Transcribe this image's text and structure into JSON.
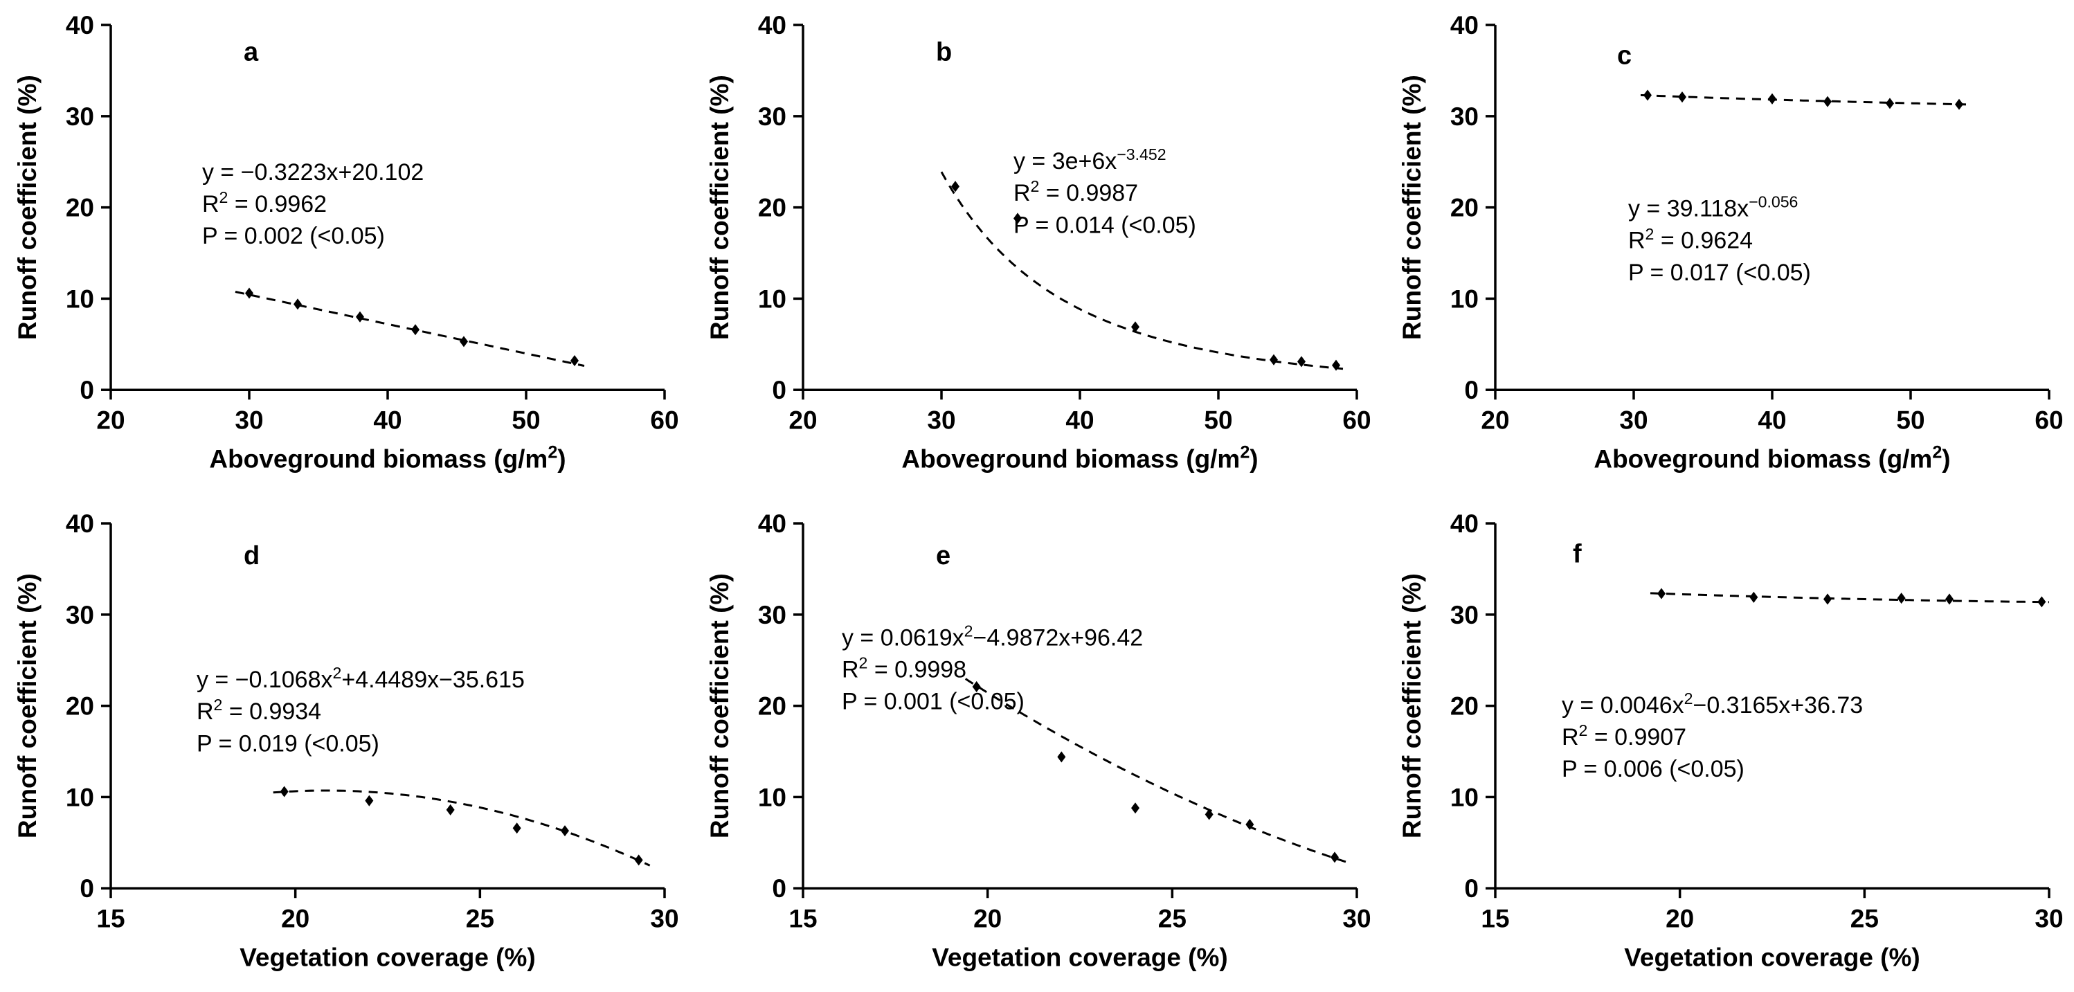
{
  "colors": {
    "axis": "#000000",
    "text": "#000000",
    "marker": "#000000",
    "trend": "#000000",
    "background": "#ffffff"
  },
  "chart_data": [
    {
      "panel": "a",
      "type": "scatter",
      "xlabel": "Aboveground biomass (g/m{2})",
      "ylabel": "Runoff coefficient (%)",
      "xlim": [
        20,
        60
      ],
      "xticks": [
        20,
        30,
        40,
        50,
        60
      ],
      "ylim": [
        0,
        40
      ],
      "yticks": [
        0,
        10,
        20,
        30,
        40
      ],
      "letter": {
        "text": "a",
        "fx": 0.24,
        "fy": 0.025
      },
      "annotation": {
        "fx": 0.165,
        "fy": 0.36,
        "lines": [
          "y = −0.3223x+20.102",
          "R{2} = 0.9962",
          "P = 0.002 (<0.05)"
        ]
      },
      "points": [
        [
          30,
          10.6
        ],
        [
          33.5,
          9.4
        ],
        [
          38,
          8.0
        ],
        [
          42,
          6.6
        ],
        [
          45.5,
          5.3
        ],
        [
          53.5,
          3.2
        ]
      ],
      "trend": {
        "kind": "linear",
        "coeffs": [
          -0.3223,
          20.102
        ],
        "xrange": [
          29,
          54.2
        ]
      }
    },
    {
      "panel": "b",
      "type": "scatter",
      "xlabel": "Aboveground biomass (g/m{2})",
      "ylabel": "Runoff coefficient (%)",
      "xlim": [
        20,
        60
      ],
      "xticks": [
        20,
        30,
        40,
        50,
        60
      ],
      "ylim": [
        0,
        40
      ],
      "yticks": [
        0,
        10,
        20,
        30,
        40
      ],
      "letter": {
        "text": "b",
        "fx": 0.24,
        "fy": 0.025
      },
      "annotation": {
        "fx": 0.38,
        "fy": 0.33,
        "lines": [
          "y = 3e+6x{−3.452}",
          "R{2} = 0.9987",
          "P = 0.014 (<0.05)"
        ]
      },
      "points": [
        [
          31,
          22.3
        ],
        [
          35.5,
          18.8
        ],
        [
          44,
          6.9
        ],
        [
          54,
          3.3
        ],
        [
          56,
          3.1
        ],
        [
          58.5,
          2.7
        ]
      ],
      "trend": {
        "kind": "power",
        "coeffs": [
          3000000,
          -3.452
        ],
        "xrange": [
          30,
          59
        ]
      }
    },
    {
      "panel": "c",
      "type": "scatter",
      "xlabel": "Aboveground biomass (g/m{2})",
      "ylabel": "Runoff coefficient (%)",
      "xlim": [
        20,
        60
      ],
      "xticks": [
        20,
        30,
        40,
        50,
        60
      ],
      "ylim": [
        0,
        40
      ],
      "yticks": [
        0,
        10,
        20,
        30,
        40
      ],
      "letter": {
        "text": "c",
        "fx": 0.22,
        "fy": 0.035
      },
      "annotation": {
        "fx": 0.24,
        "fy": 0.46,
        "lines": [
          "y = 39.118x{−0.056}",
          "R{2} = 0.9624",
          "P = 0.017 (<0.05)"
        ]
      },
      "points": [
        [
          31,
          32.3
        ],
        [
          33.5,
          32.1
        ],
        [
          40,
          31.9
        ],
        [
          44,
          31.6
        ],
        [
          48.5,
          31.4
        ],
        [
          53.5,
          31.3
        ]
      ],
      "trend": {
        "kind": "power",
        "coeffs": [
          39.118,
          -0.056
        ],
        "xrange": [
          30.5,
          54
        ]
      }
    },
    {
      "panel": "d",
      "type": "scatter",
      "xlabel": "Vegetation coverage (%)",
      "ylabel": "Runoff coefficient (%)",
      "xlim": [
        15,
        30
      ],
      "xticks": [
        15,
        20,
        25,
        30
      ],
      "ylim": [
        0,
        40
      ],
      "yticks": [
        0,
        10,
        20,
        30,
        40
      ],
      "letter": {
        "text": "d",
        "fx": 0.24,
        "fy": 0.04
      },
      "annotation": {
        "fx": 0.155,
        "fy": 0.385,
        "lines": [
          "y = −0.1068x{2}+4.4489x−35.615",
          "R{2} = 0.9934",
          "P = 0.019 (<0.05)"
        ]
      },
      "points": [
        [
          19.7,
          10.6
        ],
        [
          22,
          9.6
        ],
        [
          24.2,
          8.6
        ],
        [
          26,
          6.6
        ],
        [
          27.3,
          6.3
        ],
        [
          29.3,
          3.1
        ]
      ],
      "trend": {
        "kind": "quad",
        "coeffs": [
          -0.1068,
          4.4489,
          -35.615
        ],
        "xrange": [
          19.4,
          29.6
        ]
      }
    },
    {
      "panel": "e",
      "type": "scatter",
      "xlabel": "Vegetation coverage (%)",
      "ylabel": "Runoff coefficient (%)",
      "xlim": [
        15,
        30
      ],
      "xticks": [
        15,
        20,
        25,
        30
      ],
      "ylim": [
        0,
        40
      ],
      "yticks": [
        0,
        10,
        20,
        30,
        40
      ],
      "letter": {
        "text": "e",
        "fx": 0.24,
        "fy": 0.04
      },
      "annotation": {
        "fx": 0.07,
        "fy": 0.27,
        "lines": [
          "y = 0.0619x{2}−4.9872x+96.42",
          "R{2} = 0.9998",
          "P = 0.001 (<0.05)"
        ]
      },
      "points": [
        [
          19.7,
          22.1
        ],
        [
          22,
          14.4
        ],
        [
          24,
          8.8
        ],
        [
          26,
          8.1
        ],
        [
          27.1,
          7.0
        ],
        [
          29.4,
          3.4
        ]
      ],
      "trend": {
        "kind": "quad",
        "coeffs": [
          0.0619,
          -4.9872,
          96.42
        ],
        "xrange": [
          19.4,
          29.7
        ]
      }
    },
    {
      "panel": "f",
      "type": "scatter",
      "xlabel": "Vegetation coverage (%)",
      "ylabel": "Runoff coefficient (%)",
      "xlim": [
        15,
        30
      ],
      "xticks": [
        15,
        20,
        25,
        30
      ],
      "ylim": [
        0,
        40
      ],
      "yticks": [
        0,
        10,
        20,
        30,
        40
      ],
      "letter": {
        "text": "f",
        "fx": 0.14,
        "fy": 0.035
      },
      "annotation": {
        "fx": 0.12,
        "fy": 0.455,
        "lines": [
          "y = 0.0046x{2}−0.3165x+36.73",
          "R{2} = 0.9907",
          "P = 0.006 (<0.05)"
        ]
      },
      "points": [
        [
          19.5,
          32.3
        ],
        [
          22,
          31.9
        ],
        [
          24,
          31.7
        ],
        [
          26,
          31.8
        ],
        [
          27.3,
          31.7
        ],
        [
          29.8,
          31.4
        ]
      ],
      "trend": {
        "kind": "quad",
        "coeffs": [
          0.0046,
          -0.3165,
          36.73
        ],
        "xrange": [
          19.2,
          30
        ]
      }
    }
  ]
}
